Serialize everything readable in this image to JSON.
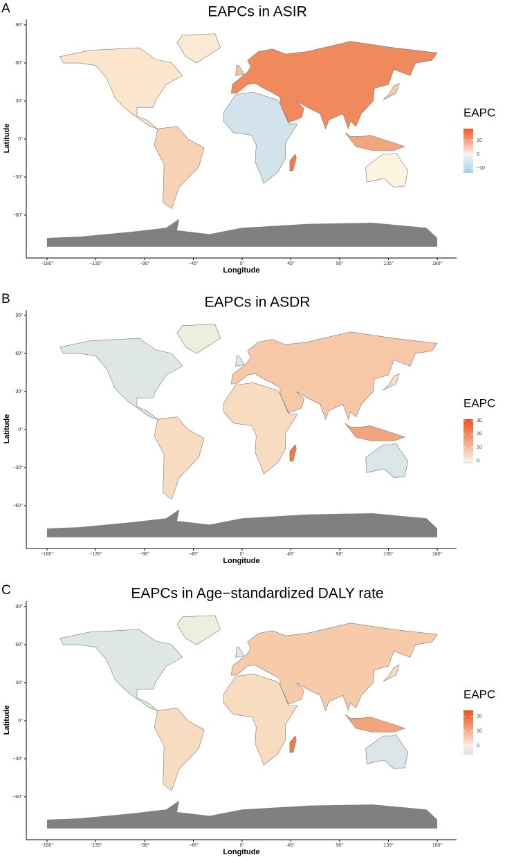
{
  "panels": [
    {
      "label": "A",
      "title": "EAPCs in ASIR",
      "x_label": "Longitude",
      "y_label": "Latitude",
      "xticks": [
        {
          "value": -180,
          "label": "−180°"
        },
        {
          "value": -135,
          "label": "−135°"
        },
        {
          "value": -90,
          "label": "−90°"
        },
        {
          "value": -45,
          "label": "−45°"
        },
        {
          "value": 0,
          "label": "0°"
        },
        {
          "value": 45,
          "label": "45°"
        },
        {
          "value": 90,
          "label": "90°"
        },
        {
          "value": 135,
          "label": "135°"
        },
        {
          "value": 180,
          "label": "180°"
        }
      ],
      "yticks": [
        {
          "value": 90,
          "label": "90°"
        },
        {
          "value": 60,
          "label": "60°"
        },
        {
          "value": 30,
          "label": "30°"
        },
        {
          "value": 0,
          "label": "0°"
        },
        {
          "value": -30,
          "label": "−30°"
        },
        {
          "value": -60,
          "label": "−60°"
        }
      ],
      "legend": {
        "title": "EAPC",
        "range": [
          -13.5,
          18.5
        ],
        "colors": [
          "#9fd3ef",
          "#f8f3ea",
          "#ef5a24"
        ],
        "ticks": [
          10,
          0,
          {
            "value": -10,
            "label": "−10"
          }
        ]
      }
    },
    {
      "label": "B",
      "title": "EAPCs in ASDR",
      "x_label": "Longitude",
      "y_label": "Latitude",
      "xticks": [
        {
          "value": -180,
          "label": "−180°"
        },
        {
          "value": -135,
          "label": "−135°"
        },
        {
          "value": -90,
          "label": "−90°"
        },
        {
          "value": -45,
          "label": "−45°"
        },
        {
          "value": 0,
          "label": "0°"
        },
        {
          "value": 45,
          "label": "45°"
        },
        {
          "value": 90,
          "label": "90°"
        },
        {
          "value": 135,
          "label": "135°"
        },
        {
          "value": 180,
          "label": "180°"
        }
      ],
      "yticks": [
        {
          "value": 90,
          "label": "90°"
        },
        {
          "value": 60,
          "label": "60°"
        },
        {
          "value": 30,
          "label": "30°"
        },
        {
          "value": 0,
          "label": "0°"
        },
        {
          "value": -30,
          "label": "−30°"
        },
        {
          "value": -60,
          "label": "−60°"
        }
      ],
      "legend": {
        "title": "EAPC",
        "range": [
          -2,
          31
        ],
        "colors": [
          "#d3e6ea",
          "#f8efe0",
          "#e9531f"
        ],
        "ticks": [
          30,
          20,
          10,
          0
        ]
      }
    },
    {
      "label": "C",
      "title": "EAPCs in Age−standardized DALY rate",
      "x_label": "Longitude",
      "y_label": "Latitude",
      "xticks": [
        {
          "value": -180,
          "label": "−180°"
        },
        {
          "value": -135,
          "label": "−135°"
        },
        {
          "value": -90,
          "label": "−90°"
        },
        {
          "value": -45,
          "label": "−45°"
        },
        {
          "value": 0,
          "label": "0°"
        },
        {
          "value": 45,
          "label": "45°"
        },
        {
          "value": 90,
          "label": "90°"
        },
        {
          "value": 135,
          "label": "135°"
        },
        {
          "value": 180,
          "label": "180°"
        }
      ],
      "yticks": [
        {
          "value": 90,
          "label": "90°"
        },
        {
          "value": 60,
          "label": "60°"
        },
        {
          "value": 30,
          "label": "30°"
        },
        {
          "value": 0,
          "label": "0°"
        },
        {
          "value": -30,
          "label": "−30°"
        },
        {
          "value": -60,
          "label": "−60°"
        }
      ],
      "legend": {
        "title": "EAPC",
        "range": [
          -6,
          24
        ],
        "colors": [
          "#d3e6ea",
          "#f8efe0",
          "#e9531f"
        ],
        "ticks": [
          20,
          10,
          0
        ]
      }
    }
  ]
}
